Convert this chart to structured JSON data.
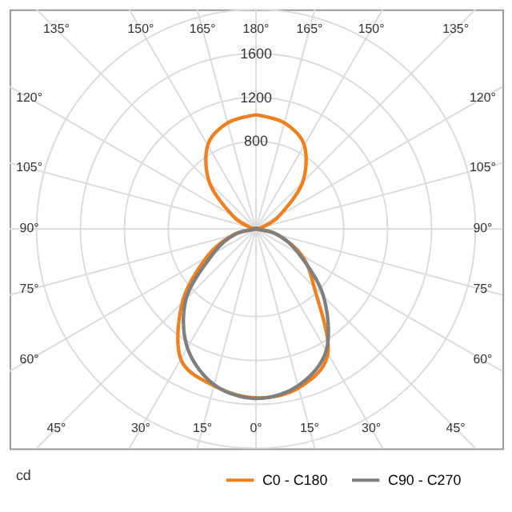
{
  "chart_data": {
    "type": "radar",
    "ylabel": "cd",
    "categories": [
      "180°",
      "165°",
      "150°",
      "135°",
      "120°",
      "105°",
      "90°",
      "75°",
      "60°",
      "45°",
      "30°",
      "15°",
      "0°",
      "15°",
      "30°",
      "45°",
      "60°",
      "75°",
      "90°",
      "105°",
      "120°",
      "135°",
      "150°",
      "165°"
    ],
    "series": [
      {
        "name": "C0 - C180",
        "color": "#f07f1e",
        "values": [
          1040,
          1000,
          880,
          600,
          250,
          60,
          0,
          200,
          480,
          750,
          1310,
          1500,
          1540,
          1480,
          1370,
          950,
          520,
          220,
          0,
          60,
          250,
          600,
          880,
          1000
        ]
      },
      {
        "name": "C90 - C270",
        "color": "#7f7f7f",
        "values": [
          0,
          0,
          0,
          0,
          0,
          0,
          0,
          200,
          450,
          870,
          1280,
          1480,
          1545,
          1470,
          1250,
          900,
          450,
          200,
          0,
          0,
          0,
          0,
          0,
          0
        ]
      }
    ],
    "ylim": [
      0,
      2000
    ],
    "yticks": [
      800,
      1200,
      1600
    ],
    "grid": true,
    "legend": "bottom right",
    "line_style": "solid"
  }
}
